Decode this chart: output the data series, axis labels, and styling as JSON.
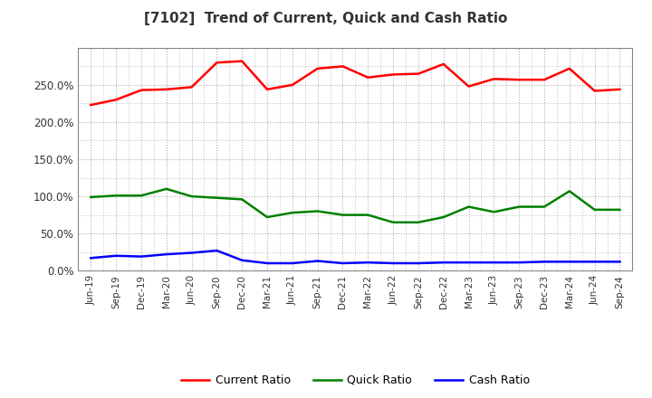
{
  "title": "[7102]  Trend of Current, Quick and Cash Ratio",
  "x_labels": [
    "Jun-19",
    "Sep-19",
    "Dec-19",
    "Mar-20",
    "Jun-20",
    "Sep-20",
    "Dec-20",
    "Mar-21",
    "Jun-21",
    "Sep-21",
    "Dec-21",
    "Mar-22",
    "Jun-22",
    "Sep-22",
    "Dec-22",
    "Mar-23",
    "Jun-23",
    "Sep-23",
    "Dec-23",
    "Mar-24",
    "Jun-24",
    "Sep-24"
  ],
  "current_ratio": [
    2.23,
    2.3,
    2.43,
    2.44,
    2.47,
    2.8,
    2.82,
    2.44,
    2.5,
    2.72,
    2.75,
    2.6,
    2.64,
    2.65,
    2.78,
    2.48,
    2.58,
    2.57,
    2.57,
    2.72,
    2.42,
    2.44
  ],
  "quick_ratio": [
    0.99,
    1.01,
    1.01,
    1.1,
    1.0,
    0.98,
    0.96,
    0.72,
    0.78,
    0.8,
    0.75,
    0.75,
    0.65,
    0.65,
    0.72,
    0.86,
    0.79,
    0.86,
    0.86,
    1.07,
    0.82,
    0.82
  ],
  "cash_ratio": [
    0.17,
    0.2,
    0.19,
    0.22,
    0.24,
    0.27,
    0.14,
    0.1,
    0.1,
    0.13,
    0.1,
    0.11,
    0.1,
    0.1,
    0.11,
    0.11,
    0.11,
    0.11,
    0.12,
    0.12,
    0.12,
    0.12
  ],
  "current_color": "#ff0000",
  "quick_color": "#008000",
  "cash_color": "#0000ff",
  "yticks": [
    0.0,
    0.5,
    1.0,
    1.5,
    2.0,
    2.5
  ],
  "ylim": [
    0.0,
    3.0
  ],
  "background_color": "#ffffff",
  "grid_color": "#aaaaaa",
  "title_color": "#333333",
  "legend_labels": [
    "Current Ratio",
    "Quick Ratio",
    "Cash Ratio"
  ]
}
